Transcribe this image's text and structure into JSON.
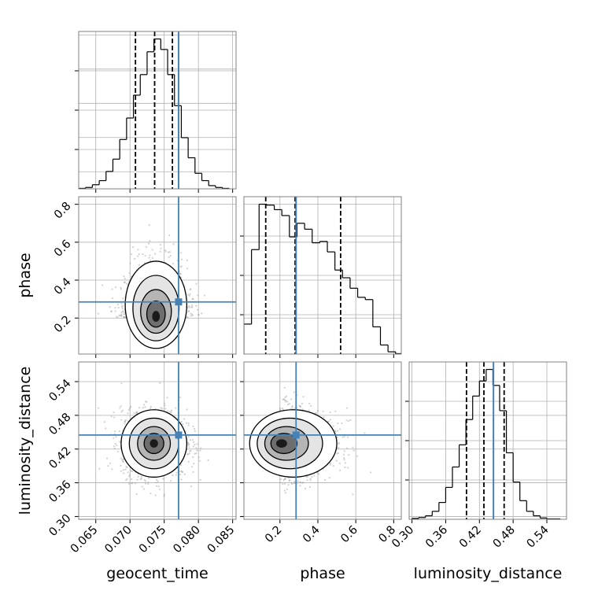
{
  "colors": {
    "truth": "#4682b4",
    "hist": "#000000",
    "grid": "#b0b0b0",
    "points": "#9a9a9a"
  },
  "chart_data": {
    "type": "corner",
    "parameters": [
      "geocent_time",
      "phase",
      "luminosity_distance"
    ],
    "grid": true,
    "ranges": {
      "geocent_time": [
        0.0625,
        0.0855
      ],
      "phase": [
        0.01,
        0.84
      ],
      "luminosity_distance": [
        0.295,
        0.575
      ]
    },
    "ticks": {
      "geocent_time": [
        "0.065",
        "0.070",
        "0.075",
        "0.080",
        "0.085"
      ],
      "phase": [
        "0.2",
        "0.4",
        "0.6",
        "0.8"
      ],
      "luminosity_distance": [
        "0.30",
        "0.36",
        "0.42",
        "0.48",
        "0.54"
      ]
    },
    "truths": {
      "geocent_time": 0.0771,
      "phase": 0.285,
      "luminosity_distance": 0.445
    },
    "quantiles": {
      "geocent_time": [
        0.0708,
        0.0736,
        0.0762
      ],
      "phase": [
        0.125,
        0.28,
        0.52
      ],
      "luminosity_distance": [
        0.397,
        0.428,
        0.464
      ]
    },
    "histograms": {
      "geocent_time": {
        "bin_edges": [
          0.0625,
          0.0635,
          0.0645,
          0.0655,
          0.0665,
          0.0675,
          0.0685,
          0.0695,
          0.0705,
          0.0715,
          0.0725,
          0.0735,
          0.0745,
          0.0755,
          0.0765,
          0.0775,
          0.0785,
          0.0795,
          0.0805,
          0.0815,
          0.0825,
          0.0835,
          0.0845
        ],
        "counts": [
          1,
          3,
          9,
          18,
          38,
          65,
          108,
          155,
          205,
          250,
          300,
          328,
          305,
          250,
          182,
          112,
          68,
          34,
          18,
          7,
          3,
          1
        ]
      },
      "phase": {
        "bin_edges": [
          0.01,
          0.05,
          0.09,
          0.13,
          0.17,
          0.21,
          0.25,
          0.29,
          0.33,
          0.37,
          0.41,
          0.45,
          0.49,
          0.53,
          0.57,
          0.61,
          0.65,
          0.69,
          0.73,
          0.77,
          0.81,
          0.84
        ],
        "counts": [
          66,
          230,
          330,
          328,
          318,
          305,
          258,
          288,
          275,
          245,
          248,
          225,
          185,
          168,
          145,
          125,
          120,
          60,
          20,
          5,
          1
        ]
      },
      "luminosity_distance": {
        "bin_edges": [
          0.3,
          0.312,
          0.324,
          0.336,
          0.348,
          0.36,
          0.372,
          0.384,
          0.396,
          0.408,
          0.42,
          0.432,
          0.444,
          0.456,
          0.468,
          0.48,
          0.492,
          0.504,
          0.516,
          0.528,
          0.54,
          0.552,
          0.564
        ],
        "counts": [
          2,
          4,
          8,
          18,
          38,
          72,
          118,
          168,
          225,
          278,
          312,
          338,
          302,
          245,
          150,
          84,
          42,
          18,
          8,
          3,
          1,
          1
        ]
      }
    },
    "density_contours": "2D posterior contours at 0.5, 1.0, 1.5 and 2.0 sigma levels with grayscale density shading and scatter points outside the outer contour",
    "density_2d": {
      "phase_vs_geocent_time": {
        "center": [
          0.0738,
          0.2
        ],
        "sigma": [
          0.00225,
          0.1
        ],
        "skew": 0.9
      },
      "luminosity_distance_vs_geocent_time": {
        "center": [
          0.0735,
          0.43
        ],
        "sigma": [
          0.0024,
          0.03
        ],
        "skew": 0
      },
      "luminosity_distance_vs_phase": {
        "center": [
          0.2,
          0.43
        ],
        "sigma": [
          0.1,
          0.03
        ],
        "skew": 0.9
      }
    }
  }
}
